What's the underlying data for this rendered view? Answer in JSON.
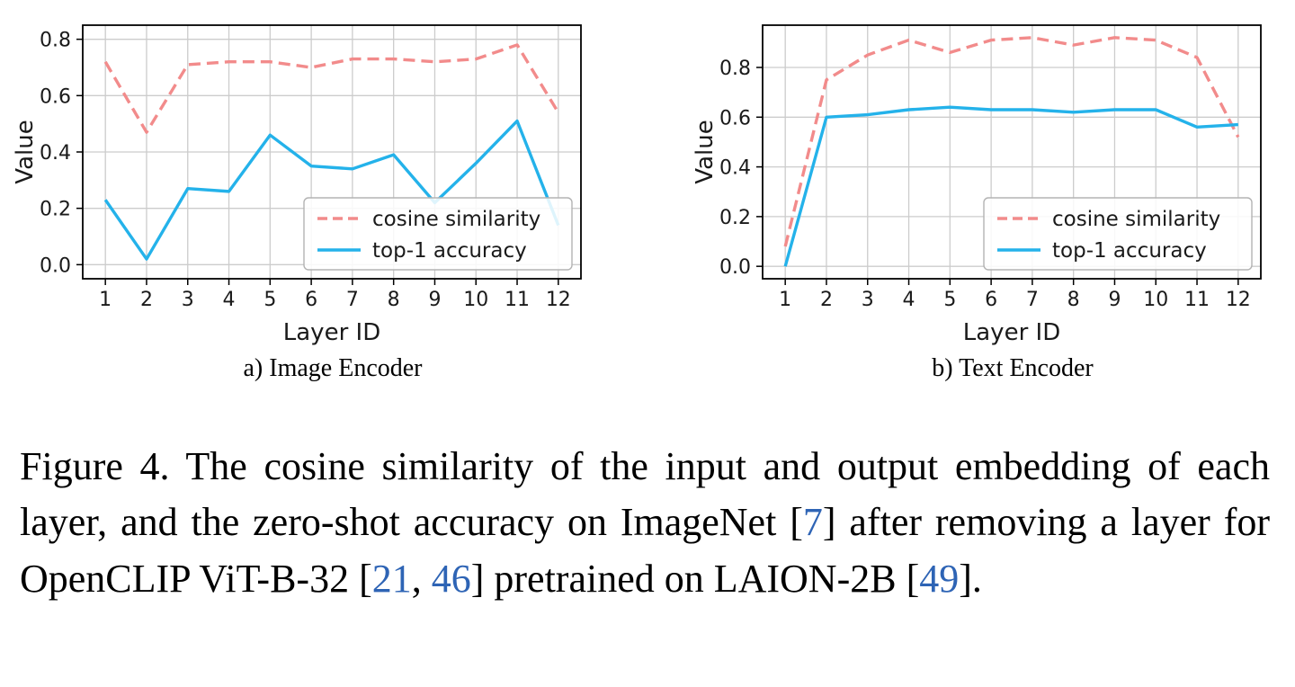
{
  "figure": {
    "cite_color": "#2e64b5",
    "caption_segments": [
      {
        "text": "Figure 4. The cosine similarity of the input and output embedding of each layer, and the zero-shot accuracy on ImageNet [",
        "style": "normal"
      },
      {
        "text": "7",
        "style": "cite"
      },
      {
        "text": "] after removing a layer for OpenCLIP ViT-B-32 [",
        "style": "normal"
      },
      {
        "text": "21",
        "style": "cite"
      },
      {
        "text": ", ",
        "style": "normal"
      },
      {
        "text": "46",
        "style": "cite"
      },
      {
        "text": "] pretrained on LAION-2B [",
        "style": "normal"
      },
      {
        "text": "49",
        "style": "cite"
      },
      {
        "text": "].",
        "style": "normal"
      }
    ]
  },
  "chart_data": [
    {
      "type": "line",
      "subcaption": "a) Image Encoder",
      "xlabel": "Layer ID",
      "ylabel": "Value",
      "x": [
        1,
        2,
        3,
        4,
        5,
        6,
        7,
        8,
        9,
        10,
        11,
        12
      ],
      "xlim": [
        0.45,
        12.55
      ],
      "ylim": [
        -0.05,
        0.85
      ],
      "yticks": [
        0.0,
        0.2,
        0.4,
        0.6,
        0.8
      ],
      "grid": true,
      "legend_position": "lower right",
      "series": [
        {
          "name": "cosine similarity",
          "line_style": "dashed",
          "color": "#f28b8b",
          "values": [
            0.72,
            0.47,
            0.71,
            0.72,
            0.72,
            0.7,
            0.73,
            0.73,
            0.72,
            0.73,
            0.78,
            0.54
          ]
        },
        {
          "name": "top-1 accuracy",
          "line_style": "solid",
          "color": "#24b2ea",
          "values": [
            0.23,
            0.02,
            0.27,
            0.26,
            0.46,
            0.35,
            0.34,
            0.39,
            0.22,
            0.36,
            0.51,
            0.14
          ]
        }
      ]
    },
    {
      "type": "line",
      "subcaption": "b) Text Encoder",
      "xlabel": "Layer ID",
      "ylabel": "Value",
      "x": [
        1,
        2,
        3,
        4,
        5,
        6,
        7,
        8,
        9,
        10,
        11,
        12
      ],
      "xlim": [
        0.45,
        12.55
      ],
      "ylim": [
        -0.05,
        0.97
      ],
      "yticks": [
        0.0,
        0.2,
        0.4,
        0.6,
        0.8
      ],
      "grid": true,
      "legend_position": "lower right",
      "series": [
        {
          "name": "cosine similarity",
          "line_style": "dashed",
          "color": "#f28b8b",
          "values": [
            0.08,
            0.75,
            0.85,
            0.91,
            0.86,
            0.91,
            0.92,
            0.89,
            0.92,
            0.91,
            0.84,
            0.52
          ]
        },
        {
          "name": "top-1 accuracy",
          "line_style": "solid",
          "color": "#24b2ea",
          "values": [
            0.0,
            0.6,
            0.61,
            0.63,
            0.64,
            0.63,
            0.63,
            0.62,
            0.63,
            0.63,
            0.56,
            0.57
          ]
        }
      ]
    }
  ]
}
